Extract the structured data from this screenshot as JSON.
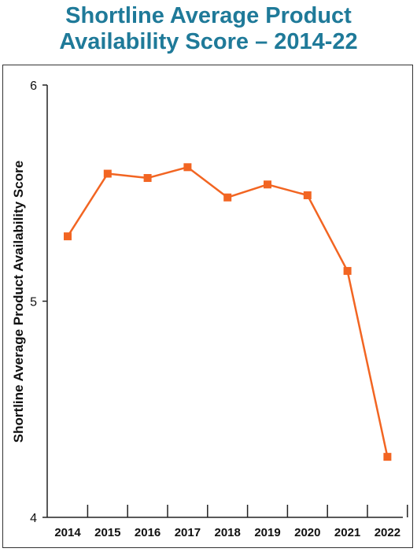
{
  "chart_data": {
    "type": "line",
    "title_line1": "Shortline Average Product",
    "title_line2": "Availability Score – 2014-22",
    "xlabel": "",
    "ylabel": "Shortline Average Product Availability Score",
    "categories": [
      "2014",
      "2015",
      "2016",
      "2017",
      "2018",
      "2019",
      "2020",
      "2021",
      "2022"
    ],
    "series": [
      {
        "values": [
          5.3,
          5.59,
          5.57,
          5.62,
          5.48,
          5.54,
          5.49,
          5.14,
          4.28
        ]
      }
    ],
    "ylim": [
      4,
      6
    ],
    "yticks": [
      "4",
      "5",
      "6"
    ],
    "grid": false,
    "legend": "none",
    "colors": {
      "series": "#f26522",
      "title": "#1f7a99",
      "axis": "#222222"
    }
  }
}
